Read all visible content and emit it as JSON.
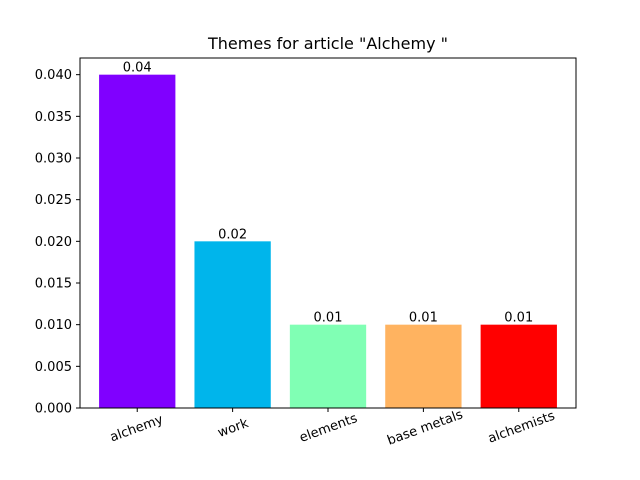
{
  "chart_data": {
    "type": "bar",
    "title": "Themes for article \"Alchemy \"",
    "xlabel": "",
    "ylabel": "",
    "categories": [
      "alchemy",
      "work",
      "elements",
      "base metals",
      "alchemists"
    ],
    "values": [
      0.04,
      0.02,
      0.01,
      0.01,
      0.01
    ],
    "data_labels": [
      "0.04",
      "0.02",
      "0.01",
      "0.01",
      "0.01"
    ],
    "colors": [
      "#8000ff",
      "#00b5eb",
      "#80ffb4",
      "#ffb360",
      "#ff0000"
    ],
    "ylim": [
      0,
      0.042
    ],
    "yticks": [
      0.0,
      0.005,
      0.01,
      0.015,
      0.02,
      0.025,
      0.03,
      0.035,
      0.04
    ],
    "ytick_labels": [
      "0.000",
      "0.005",
      "0.010",
      "0.015",
      "0.020",
      "0.025",
      "0.030",
      "0.035",
      "0.040"
    ],
    "grid": false,
    "legend": "none",
    "xtick_rotation_deg": 20
  }
}
